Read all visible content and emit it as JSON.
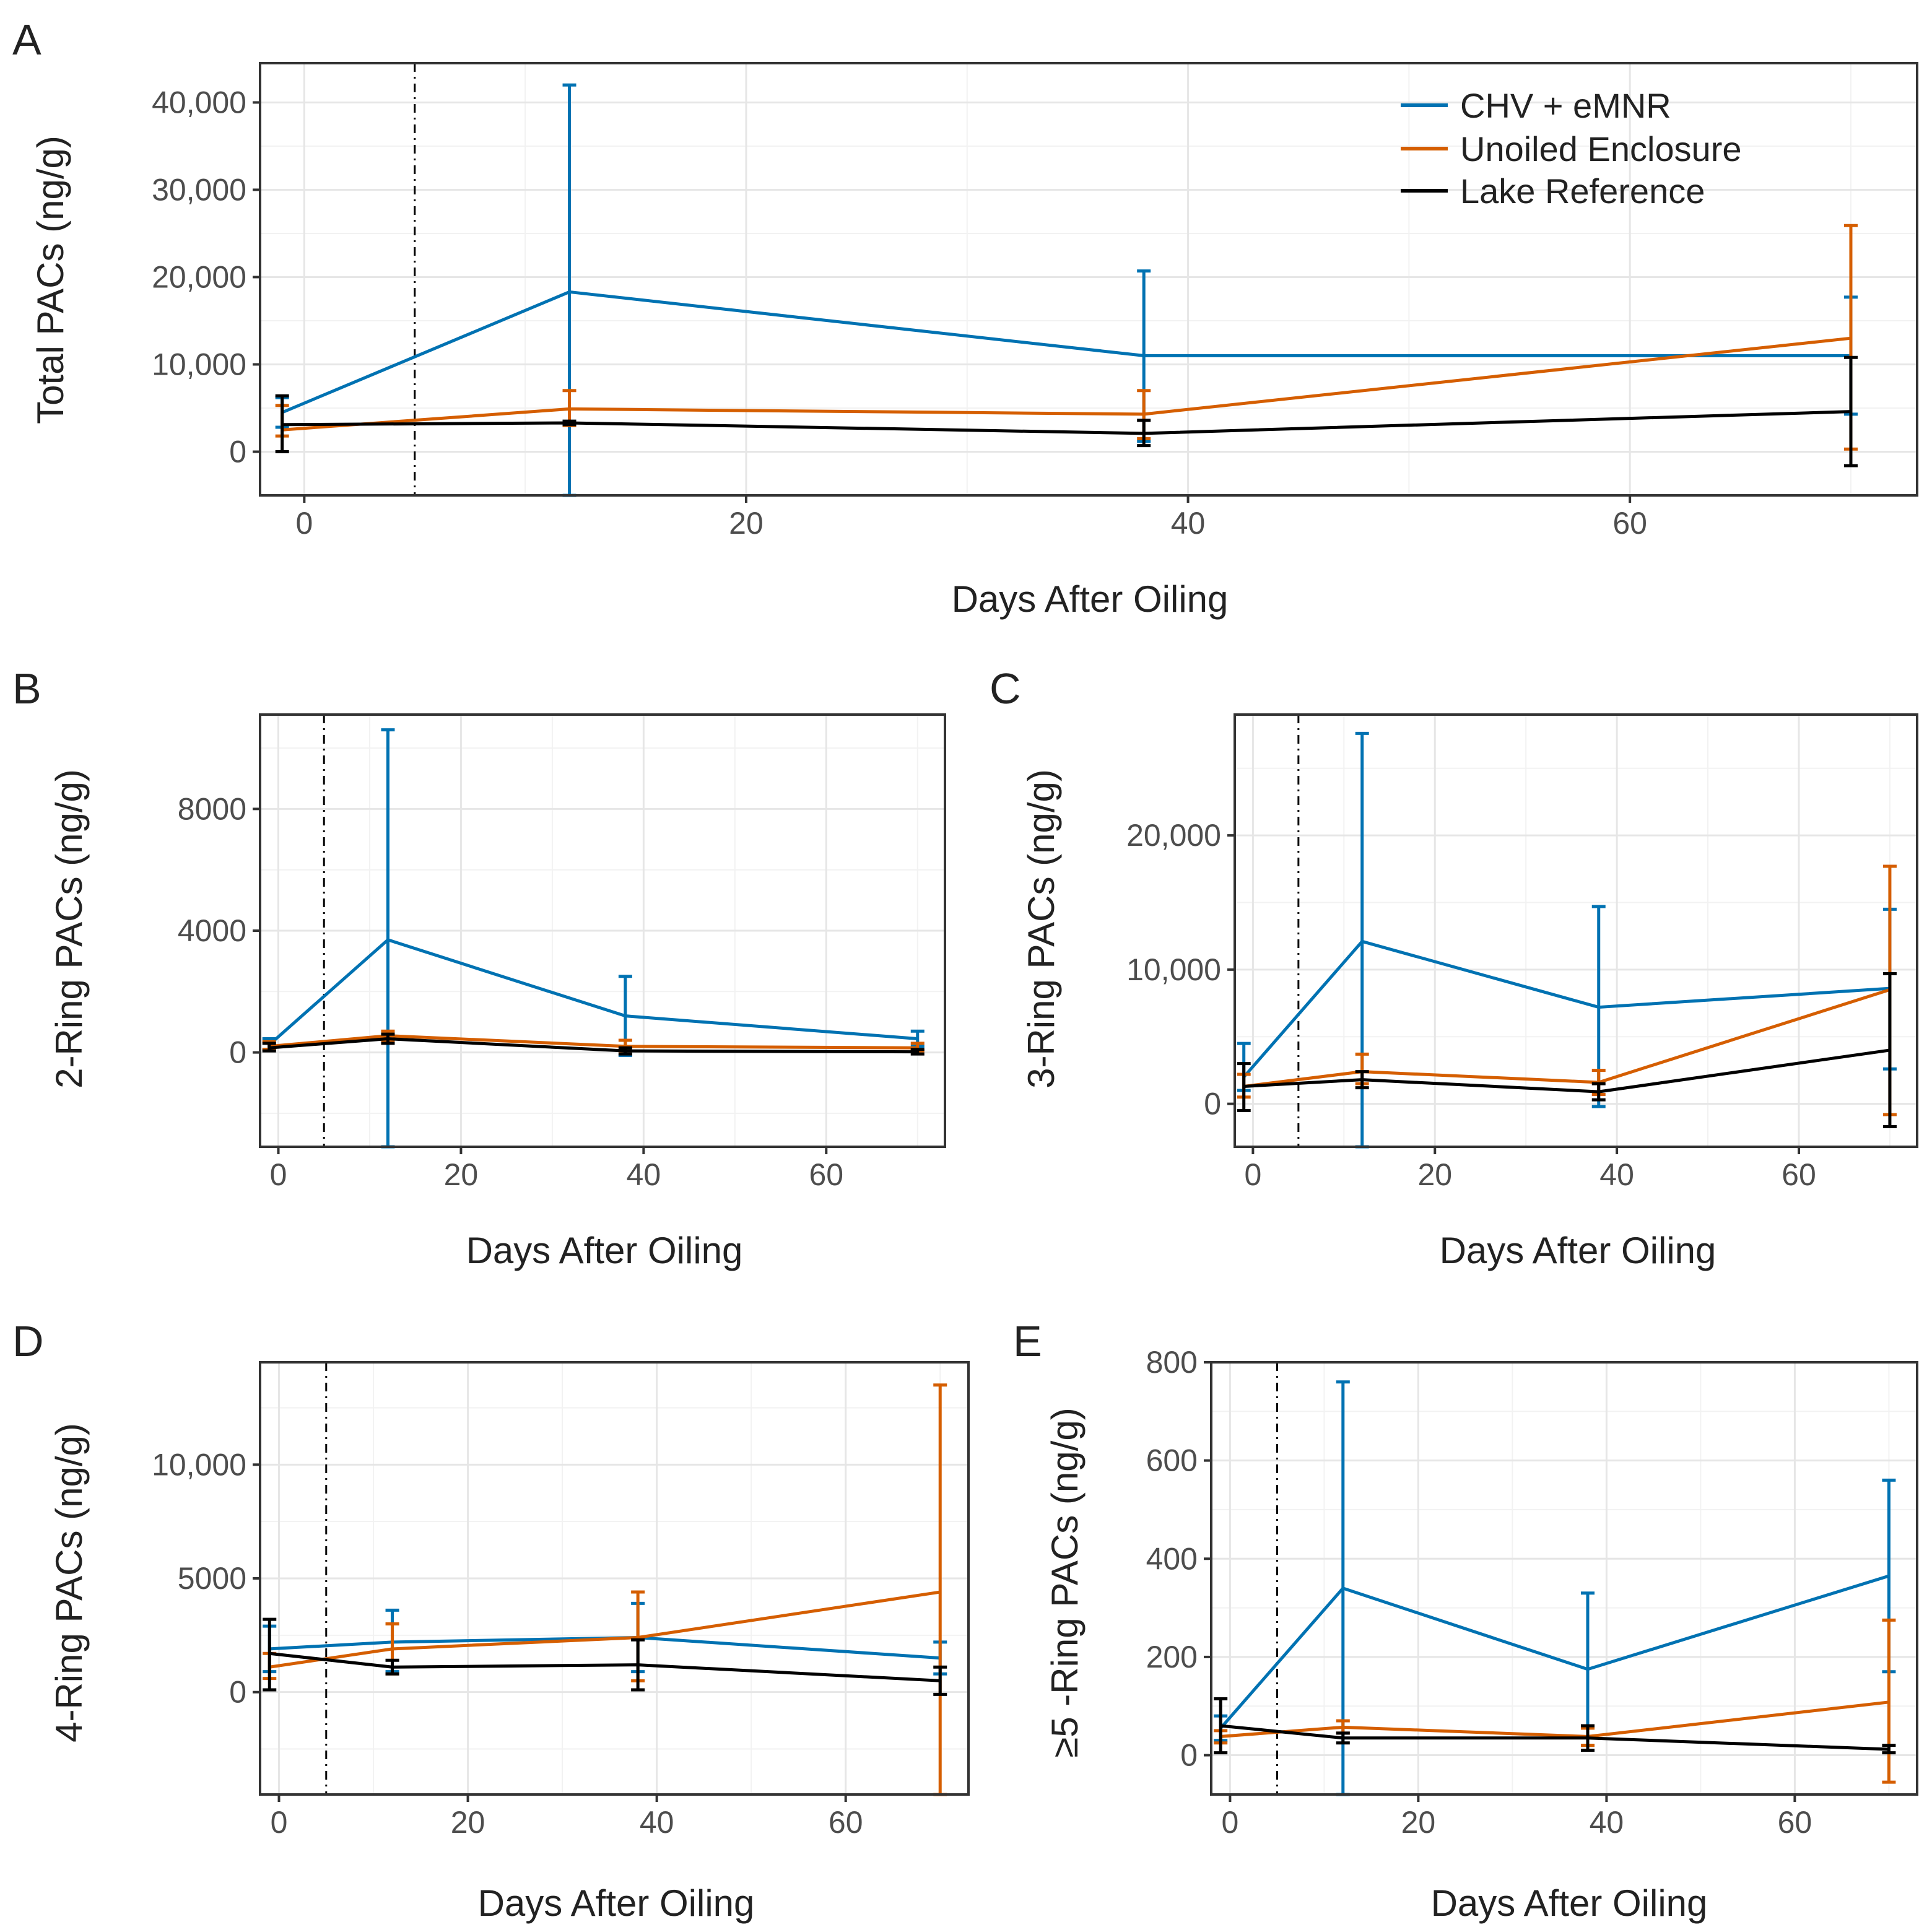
{
  "legend": {
    "entries": [
      {
        "name": "CHV + eMNR",
        "color": "#0072B2"
      },
      {
        "name": "Unoiled Enclosure",
        "color": "#D55E00"
      },
      {
        "name": "Lake Reference",
        "color": "#000000"
      }
    ]
  },
  "chart_data": [
    {
      "panel": "A",
      "type": "line",
      "xlabel": "Days After Oiling",
      "ylabel": "Total PACs (ng/g)",
      "xlim": [
        -2,
        73
      ],
      "ylim": [
        -5000,
        44500
      ],
      "xticks": [
        "0",
        "20",
        "40",
        "60"
      ],
      "xtick_values": [
        0,
        20,
        40,
        60
      ],
      "yticks": [
        "0",
        "10,000",
        "20,000",
        "30,000",
        "40,000"
      ],
      "ytick_values": [
        0,
        10000,
        20000,
        30000,
        40000
      ],
      "vline": 5,
      "series": [
        {
          "name": "CHV + eMNR",
          "color": "#0072B2",
          "x": [
            -1,
            12,
            38,
            70
          ],
          "y": [
            4500,
            18300,
            11000,
            11000
          ],
          "lower": [
            2800,
            -5000,
            1200,
            4300
          ],
          "upper": [
            6200,
            42000,
            20700,
            17700
          ]
        },
        {
          "name": "Unoiled Enclosure",
          "color": "#D55E00",
          "x": [
            -1,
            12,
            38,
            70
          ],
          "y": [
            2500,
            4900,
            4300,
            13000
          ],
          "lower": [
            1800,
            3000,
            1500,
            300
          ],
          "upper": [
            5300,
            7000,
            7000,
            25900
          ]
        },
        {
          "name": "Lake Reference",
          "color": "#000000",
          "x": [
            -1,
            12,
            38,
            70
          ],
          "y": [
            3100,
            3300,
            2100,
            4600
          ],
          "lower": [
            0,
            3100,
            700,
            -1600
          ],
          "upper": [
            6400,
            3500,
            3600,
            10800
          ]
        }
      ]
    },
    {
      "panel": "B",
      "type": "line",
      "xlabel": "Days After Oiling",
      "ylabel": "2-Ring PACs (ng/g)",
      "xlim": [
        -2,
        73
      ],
      "ylim": [
        -3100,
        11100
      ],
      "xticks": [
        "0",
        "20",
        "40",
        "60"
      ],
      "xtick_values": [
        0,
        20,
        40,
        60
      ],
      "yticks": [
        "0",
        "4000",
        "8000"
      ],
      "ytick_values": [
        0,
        4000,
        8000
      ],
      "vline": 5,
      "series": [
        {
          "name": "CHV + eMNR",
          "color": "#0072B2",
          "x": [
            -1,
            12,
            38,
            70
          ],
          "y": [
            250,
            3700,
            1200,
            450
          ],
          "lower": [
            100,
            -3100,
            -100,
            200
          ],
          "upper": [
            450,
            10600,
            2500,
            700
          ]
        },
        {
          "name": "Unoiled Enclosure",
          "color": "#D55E00",
          "x": [
            -1,
            12,
            38,
            70
          ],
          "y": [
            200,
            550,
            200,
            150
          ],
          "lower": [
            100,
            400,
            50,
            50
          ],
          "upper": [
            350,
            700,
            400,
            300
          ]
        },
        {
          "name": "Lake Reference",
          "color": "#000000",
          "x": [
            -1,
            12,
            38,
            70
          ],
          "y": [
            150,
            450,
            50,
            20
          ],
          "lower": [
            50,
            300,
            -50,
            -50
          ],
          "upper": [
            300,
            600,
            150,
            100
          ]
        }
      ]
    },
    {
      "panel": "C",
      "type": "line",
      "xlabel": "Days After Oiling",
      "ylabel": "3-Ring PACs (ng/g)",
      "xlim": [
        -2,
        73
      ],
      "ylim": [
        -3200,
        29000
      ],
      "xticks": [
        "0",
        "20",
        "40",
        "60"
      ],
      "xtick_values": [
        0,
        20,
        40,
        60
      ],
      "yticks": [
        "0",
        "10,000",
        "20,000"
      ],
      "ytick_values": [
        0,
        10000,
        20000
      ],
      "vline": 5,
      "series": [
        {
          "name": "CHV + eMNR",
          "color": "#0072B2",
          "x": [
            -1,
            12,
            38,
            70
          ],
          "y": [
            2000,
            12100,
            7200,
            8600
          ],
          "lower": [
            1000,
            -3200,
            -200,
            2600
          ],
          "upper": [
            4500,
            27600,
            14700,
            14500
          ]
        },
        {
          "name": "Unoiled Enclosure",
          "color": "#D55E00",
          "x": [
            -1,
            12,
            38,
            70
          ],
          "y": [
            1300,
            2400,
            1600,
            8500
          ],
          "lower": [
            500,
            1500,
            700,
            -800
          ],
          "upper": [
            2200,
            3700,
            2500,
            17700
          ]
        },
        {
          "name": "Lake Reference",
          "color": "#000000",
          "x": [
            -1,
            12,
            38,
            70
          ],
          "y": [
            1300,
            1800,
            900,
            4000
          ],
          "lower": [
            -500,
            1200,
            300,
            -1700
          ],
          "upper": [
            3000,
            2400,
            1500,
            9700
          ]
        }
      ]
    },
    {
      "panel": "D",
      "type": "line",
      "xlabel": "Days After Oiling",
      "ylabel": "4-Ring PACs (ng/g)",
      "xlim": [
        -2,
        73
      ],
      "ylim": [
        -4500,
        14500
      ],
      "xticks": [
        "0",
        "20",
        "40",
        "60"
      ],
      "xtick_values": [
        0,
        20,
        40,
        60
      ],
      "yticks": [
        "0",
        "5000",
        "10,000"
      ],
      "ytick_values": [
        0,
        5000,
        10000
      ],
      "vline": 5,
      "series": [
        {
          "name": "CHV + eMNR",
          "color": "#0072B2",
          "x": [
            -1,
            12,
            38,
            70
          ],
          "y": [
            1900,
            2200,
            2400,
            1500
          ],
          "lower": [
            900,
            900,
            900,
            800
          ],
          "upper": [
            2900,
            3600,
            3900,
            2200
          ]
        },
        {
          "name": "Unoiled Enclosure",
          "color": "#D55E00",
          "x": [
            -1,
            12,
            38,
            70
          ],
          "y": [
            1100,
            1900,
            2400,
            4400
          ],
          "lower": [
            600,
            800,
            500,
            -4500
          ],
          "upper": [
            1700,
            3000,
            4400,
            13500
          ]
        },
        {
          "name": "Lake Reference",
          "color": "#000000",
          "x": [
            -1,
            12,
            38,
            70
          ],
          "y": [
            1700,
            1100,
            1200,
            500
          ],
          "lower": [
            100,
            800,
            100,
            -100
          ],
          "upper": [
            3200,
            1400,
            2300,
            1100
          ]
        }
      ]
    },
    {
      "panel": "E",
      "type": "line",
      "xlabel": "Days After Oiling",
      "ylabel": "≥5 -Ring PACs (ng/g)",
      "xlim": [
        -2,
        73
      ],
      "ylim": [
        -80,
        800
      ],
      "xticks": [
        "0",
        "20",
        "40",
        "60"
      ],
      "xtick_values": [
        0,
        20,
        40,
        60
      ],
      "yticks": [
        "0",
        "200",
        "400",
        "600",
        "800"
      ],
      "ytick_values": [
        0,
        200,
        400,
        600,
        800
      ],
      "vline": 5,
      "series": [
        {
          "name": "CHV + eMNR",
          "color": "#0072B2",
          "x": [
            -1,
            12,
            38,
            70
          ],
          "y": [
            55,
            340,
            175,
            365
          ],
          "lower": [
            30,
            -80,
            20,
            170
          ],
          "upper": [
            80,
            760,
            330,
            560
          ]
        },
        {
          "name": "Unoiled Enclosure",
          "color": "#D55E00",
          "x": [
            -1,
            12,
            38,
            70
          ],
          "y": [
            38,
            57,
            38,
            108
          ],
          "lower": [
            25,
            45,
            20,
            -55
          ],
          "upper": [
            50,
            70,
            55,
            275
          ]
        },
        {
          "name": "Lake Reference",
          "color": "#000000",
          "x": [
            -1,
            12,
            38,
            70
          ],
          "y": [
            60,
            35,
            35,
            12
          ],
          "lower": [
            5,
            25,
            10,
            5
          ],
          "upper": [
            115,
            45,
            60,
            20
          ]
        }
      ]
    }
  ]
}
